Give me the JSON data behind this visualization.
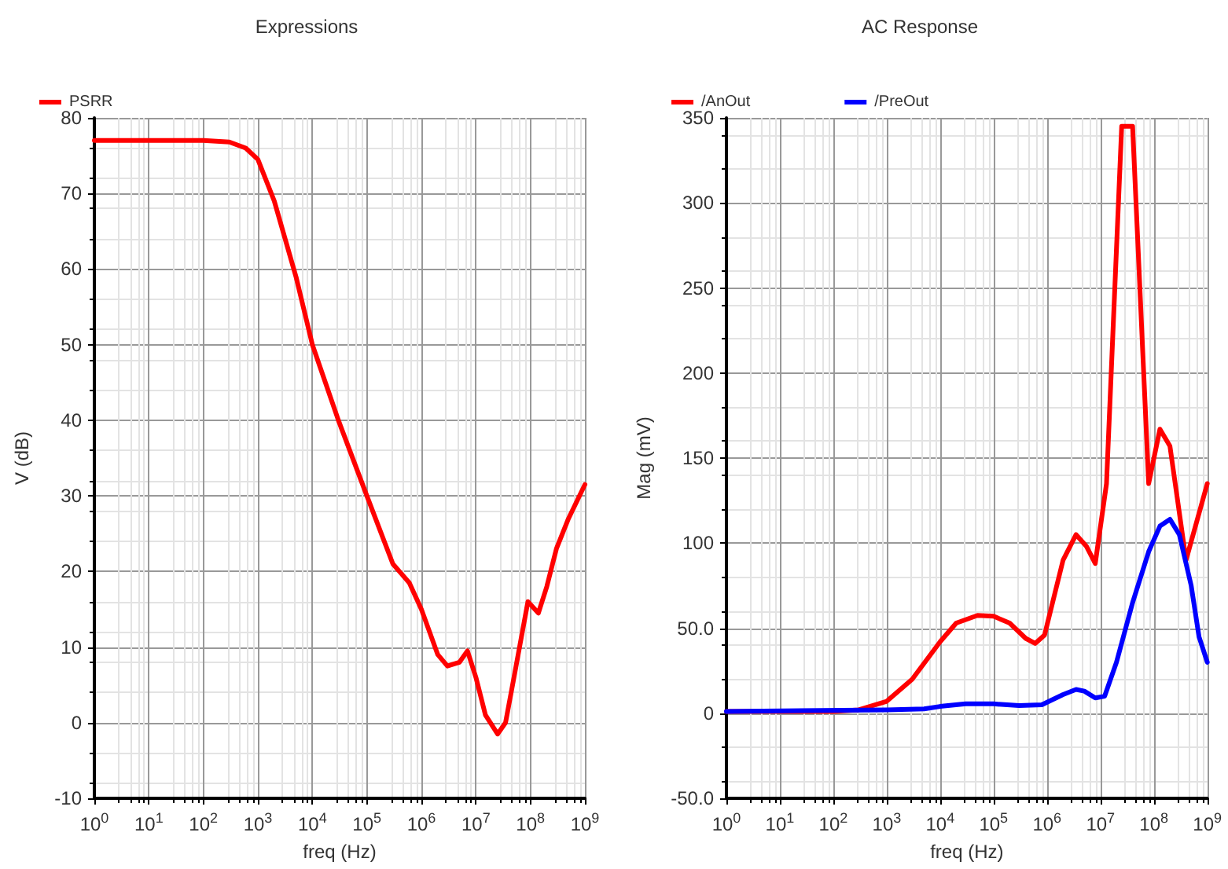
{
  "chart_data": [
    {
      "type": "line",
      "title": "Expressions",
      "xlabel": "freq (Hz)",
      "ylabel": "V (dB)",
      "log": "x",
      "grid": true,
      "legend": "top left",
      "marker": "none",
      "line_style": "solid",
      "xlim": [
        1,
        1000000000
      ],
      "xticks": [
        {
          "value": 1,
          "label": "10$^{0}$"
        },
        {
          "value": 10,
          "label": "10$^{1}$"
        },
        {
          "value": 100,
          "label": "10$^{2}$"
        },
        {
          "value": 1000,
          "label": "10$^{3}$"
        },
        {
          "value": 10000,
          "label": "10$^{4}$"
        },
        {
          "value": 100000,
          "label": "10$^{5}$"
        },
        {
          "value": 1000000,
          "label": "10$^{6}$"
        },
        {
          "value": 10000000,
          "label": "10$^{7}$"
        },
        {
          "value": 100000000,
          "label": "10$^{8}$"
        },
        {
          "value": 1000000000,
          "label": "10$^{9}$"
        }
      ],
      "ylim": [
        -10,
        80
      ],
      "yticks": [
        -10,
        0,
        10,
        20,
        30,
        40,
        50,
        60,
        70,
        80
      ],
      "series": [
        {
          "name": "PSRR",
          "color": "#ff0000",
          "x": [
            1,
            100,
            300,
            600,
            1000,
            2000,
            5000,
            10000,
            30000,
            100000,
            300000,
            600000,
            1000000,
            2000000,
            3000000,
            5000000,
            7000000,
            10000000,
            15000000,
            25000000,
            35000000,
            50000000,
            90000000,
            140000000,
            200000000,
            300000000,
            500000000,
            1000000000
          ],
          "values": [
            77,
            77,
            76.8,
            76,
            74.5,
            69,
            59,
            50,
            40,
            30,
            21,
            18.5,
            15,
            9,
            7.5,
            8,
            9.5,
            6,
            1,
            -1.5,
            0,
            6,
            16,
            14.5,
            18,
            23,
            27,
            31.5
          ]
        }
      ]
    },
    {
      "type": "line",
      "title": "AC Response",
      "xlabel": "freq (Hz)",
      "ylabel": "Mag (mV)",
      "log": "x",
      "grid": true,
      "legend": "top left",
      "marker": "none",
      "line_style": "solid",
      "xlim": [
        1,
        1000000000
      ],
      "xticks": [
        {
          "value": 1,
          "label": "10$^{0}$"
        },
        {
          "value": 10,
          "label": "10$^{1}$"
        },
        {
          "value": 100,
          "label": "10$^{2}$"
        },
        {
          "value": 1000,
          "label": "10$^{3}$"
        },
        {
          "value": 10000,
          "label": "10$^{4}$"
        },
        {
          "value": 100000,
          "label": "10$^{5}$"
        },
        {
          "value": 1000000,
          "label": "10$^{6}$"
        },
        {
          "value": 10000000,
          "label": "10$^{7}$"
        },
        {
          "value": 100000000,
          "label": "10$^{8}$"
        },
        {
          "value": 1000000000,
          "label": "10$^{9}$"
        }
      ],
      "ylim": [
        -50,
        350
      ],
      "yticks": [
        {
          "value": -50,
          "label": "-50.0"
        },
        0,
        {
          "value": 50,
          "label": "50.0"
        },
        100,
        150,
        200,
        250,
        300,
        350
      ],
      "series": [
        {
          "name": "/AnOut",
          "color": "#ff0000",
          "x": [
            1,
            100,
            300,
            1000,
            3000,
            10000,
            20000,
            50000,
            100000,
            200000,
            400000,
            600000,
            900000,
            2000000,
            3500000,
            5500000,
            8000000,
            13000000,
            25000000,
            40000000,
            80000000,
            130000000,
            200000000,
            400000000,
            1000000000
          ],
          "values": [
            1,
            1,
            2,
            7,
            20,
            42,
            53,
            57.5,
            57,
            53,
            44,
            41,
            46,
            90,
            105,
            98,
            88,
            135,
            345,
            345,
            135,
            167,
            157,
            90,
            135
          ]
        },
        {
          "name": "/PreOut",
          "color": "#0000ff",
          "x": [
            1,
            1000,
            5000,
            10000,
            30000,
            100000,
            300000,
            800000,
            2000000,
            3500000,
            5000000,
            8000000,
            12000000,
            20000000,
            40000000,
            80000000,
            130000000,
            200000000,
            300000000,
            500000000,
            700000000,
            1000000000
          ],
          "values": [
            1,
            2,
            2.5,
            4,
            5.5,
            5.5,
            4.5,
            5,
            11,
            14,
            13,
            9,
            10,
            30,
            65,
            95,
            110,
            114,
            105,
            75,
            45,
            30
          ]
        }
      ]
    }
  ]
}
